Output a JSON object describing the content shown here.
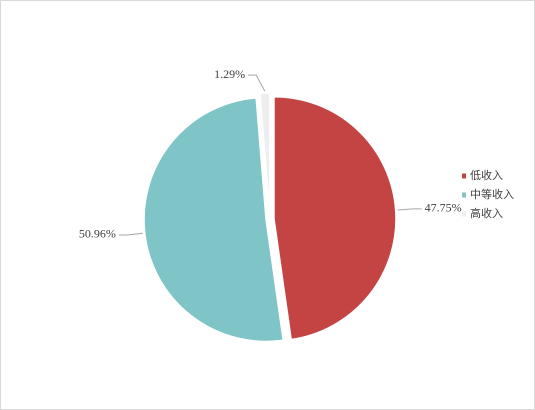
{
  "chart_data": {
    "type": "pie",
    "categories": [
      "低收入",
      "中等收入",
      "高收入"
    ],
    "values": [
      47.75,
      50.96,
      1.29
    ],
    "value_labels": [
      "47.75%",
      "50.96%",
      "1.29%"
    ],
    "colors": [
      "#c44444",
      "#7fc4c6",
      "#eeeeee"
    ],
    "legend": "right"
  }
}
